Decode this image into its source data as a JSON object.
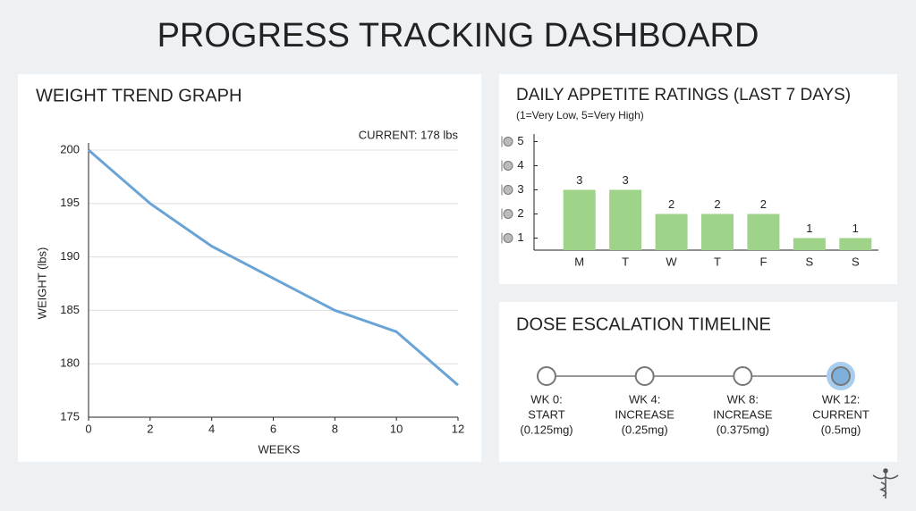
{
  "title": "PROGRESS TRACKING DASHBOARD",
  "chart_data": [
    {
      "type": "line",
      "title": "WEIGHT TREND GRAPH",
      "annotation": "CURRENT: 178 lbs",
      "xlabel": "WEEKS",
      "ylabel": "WEIGHT (lbs)",
      "x": [
        0,
        2,
        4,
        6,
        8,
        10,
        12
      ],
      "values": [
        200,
        195,
        191,
        188,
        185,
        183,
        178
      ],
      "color": "#6aa3d5",
      "xlim": [
        0,
        12
      ],
      "ylim": [
        175,
        200
      ],
      "xticks": [
        0,
        2,
        4,
        6,
        8,
        10,
        12
      ],
      "yticks": [
        175,
        180,
        185,
        190,
        195,
        200
      ],
      "grid": true
    },
    {
      "type": "bar",
      "title": "DAILY APPETITE RATINGS (LAST 7 DAYS)",
      "subtitle": "(1=Very Low, 5=Very High)",
      "categories": [
        "M",
        "T",
        "W",
        "T",
        "F",
        "S",
        "S"
      ],
      "values": [
        3,
        3,
        2,
        2,
        2,
        1,
        1
      ],
      "color": "#9fd38a",
      "ylim": [
        0.5,
        5.5
      ],
      "yticks": [
        1,
        2,
        3,
        4,
        5
      ]
    }
  ],
  "timeline": {
    "title": "DOSE ESCALATION TIMELINE",
    "steps": [
      {
        "lines": [
          "WK 0:",
          "START",
          "(0.125mg)"
        ]
      },
      {
        "lines": [
          "WK 4:",
          "INCREASE",
          "(0.25mg)"
        ]
      },
      {
        "lines": [
          "WK 8:",
          "INCREASE",
          "(0.375mg)"
        ]
      },
      {
        "lines": [
          "WK 12:",
          "CURRENT",
          "(0.5mg)"
        ]
      }
    ]
  }
}
